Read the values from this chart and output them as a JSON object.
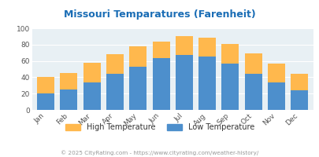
{
  "title": "Missouri Temparatures (Farenheit)",
  "months": [
    "Jan",
    "Feb",
    "Mar",
    "Apr",
    "May",
    "Jun",
    "Jul",
    "Aug",
    "Sep",
    "Oct",
    "Nov",
    "Dec"
  ],
  "low_temps": [
    20,
    25,
    34,
    44,
    53,
    63,
    67,
    65,
    57,
    44,
    34,
    24
  ],
  "high_temps": [
    40,
    45,
    58,
    68,
    78,
    84,
    90,
    88,
    81,
    69,
    57,
    44
  ],
  "low_color": "#4d8fcc",
  "high_color": "#ffb84d",
  "chart_bg_color": "#e8f0f4",
  "fig_bg_color": "#ffffff",
  "title_color": "#1a6db5",
  "axis_label_color": "#888888",
  "tick_label_color": "#555555",
  "legend_text_color": "#333333",
  "footer_color": "#999999",
  "footer_link_color": "#4d8fcc",
  "ylabel_max": 100,
  "ylabel_min": 0,
  "ylabel_step": 20,
  "legend_high": "High Temperature",
  "legend_low": "Low Temperature",
  "footer_text": "© 2025 CityRating.com - https://www.cityrating.com/weather-history/"
}
